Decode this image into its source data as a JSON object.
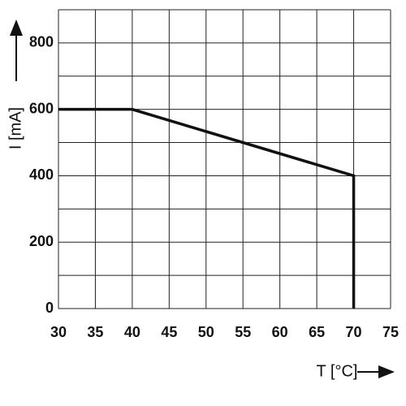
{
  "chart_data": {
    "type": "line",
    "x_label": "T [°C]",
    "y_label": "I [mA]",
    "x": [
      30,
      40,
      70,
      70
    ],
    "values": [
      600,
      600,
      400,
      0
    ],
    "color": "#111111",
    "xlim": [
      30,
      75
    ],
    "xticks": [
      30,
      35,
      40,
      45,
      50,
      55,
      60,
      65,
      70,
      75
    ],
    "ylim": [
      0,
      900
    ],
    "yticks": [
      0,
      200,
      400,
      600,
      800
    ],
    "y_minor_ticks": [
      100,
      300,
      500,
      700,
      900
    ],
    "grid": true
  }
}
